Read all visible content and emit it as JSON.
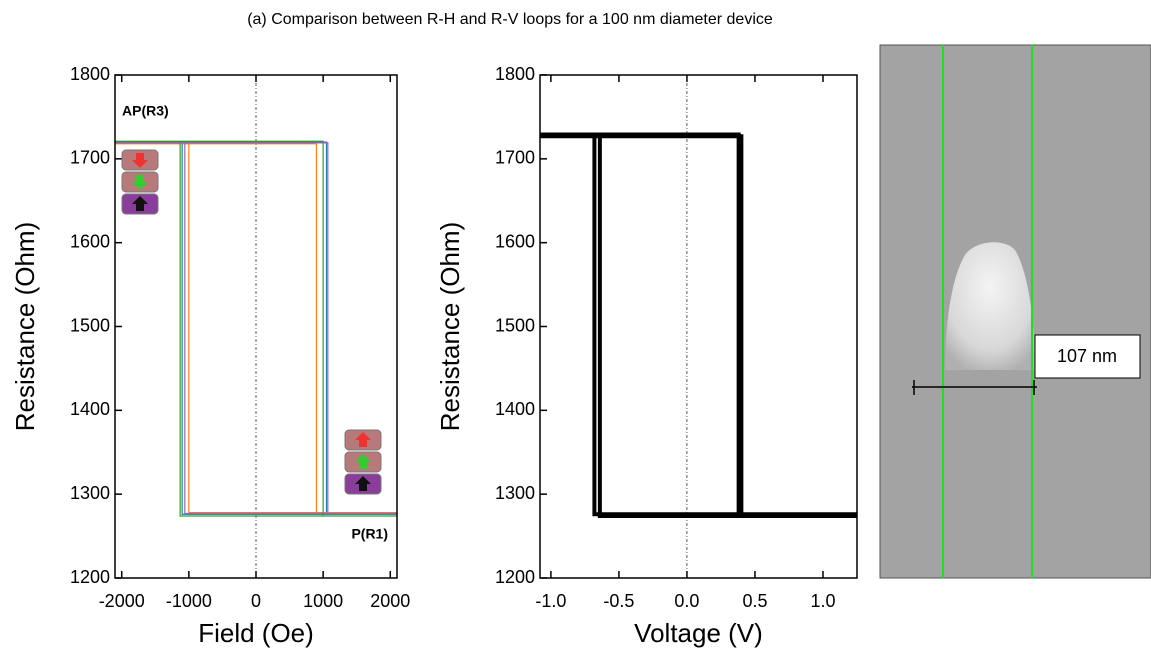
{
  "figure_title": "(a) Comparison between R-H and R-V loops for a 100 nm diameter device",
  "chart_data": [
    {
      "type": "line",
      "xlabel": "Field (Oe)",
      "ylabel": "Resistance (Ohm)",
      "xlim": [
        -2100,
        2100
      ],
      "ylim": [
        1200,
        1800
      ],
      "xticks": [
        -2000,
        -1000,
        0,
        1000,
        2000
      ],
      "yticks": [
        1200,
        1300,
        1400,
        1500,
        1600,
        1700,
        1800
      ],
      "zero_line": true,
      "annotations": [
        "AP(R3)",
        "P(R1)"
      ],
      "series": [
        {
          "color": "#1f77b4",
          "x": [
            -2100,
            1050,
            1050,
            2100,
            -1100,
            -1100,
            -2100
          ],
          "values": [
            1720,
            1720,
            1276,
            1276,
            1276,
            1720,
            1720
          ]
        },
        {
          "color": "#ff7f0e",
          "x": [
            -2100,
            900,
            900,
            2100,
            -1000,
            -1000,
            -2100
          ],
          "values": [
            1718,
            1718,
            1278,
            1278,
            1278,
            1718,
            1718
          ]
        },
        {
          "color": "#2ca02c",
          "x": [
            -2100,
            1000,
            1000,
            2100,
            -1130,
            -1130,
            -2100
          ],
          "values": [
            1721,
            1721,
            1274,
            1274,
            1274,
            1721,
            1721
          ]
        },
        {
          "color": "#9467bd",
          "x": [
            -2100,
            1070,
            1070,
            2100,
            -1060,
            -1060,
            -2100
          ],
          "values": [
            1719,
            1719,
            1277,
            1277,
            1277,
            1719,
            1719
          ]
        }
      ]
    },
    {
      "type": "line",
      "xlabel": "Voltage (V)",
      "ylabel": "Resistance (Ohm)",
      "xlim": [
        -1.08,
        1.25
      ],
      "ylim": [
        1200,
        1800
      ],
      "xticks": [
        {
          "value": -1,
          "label": "-1.0"
        },
        -0.5,
        {
          "value": 0,
          "label": "0.0"
        },
        0.5,
        {
          "value": 1,
          "label": "1.0"
        }
      ],
      "yticks": [
        1200,
        1300,
        1400,
        1500,
        1600,
        1700,
        1800
      ],
      "zero_line": true,
      "series": [
        {
          "color": "#000000",
          "x": [
            -1.08,
            0.38,
            0.38,
            1.25,
            -0.64,
            -0.64,
            -1.08
          ],
          "values": [
            1729,
            1729,
            1274,
            1274,
            1274,
            1729,
            1729
          ]
        },
        {
          "color": "#000000",
          "x": [
            -1.08,
            0.4,
            0.4,
            1.25,
            -0.68,
            -0.68,
            -1.08
          ],
          "values": [
            1727,
            1727,
            1276,
            1276,
            1276,
            1727,
            1727
          ]
        }
      ]
    }
  ],
  "image": {
    "label": "107 nm"
  }
}
